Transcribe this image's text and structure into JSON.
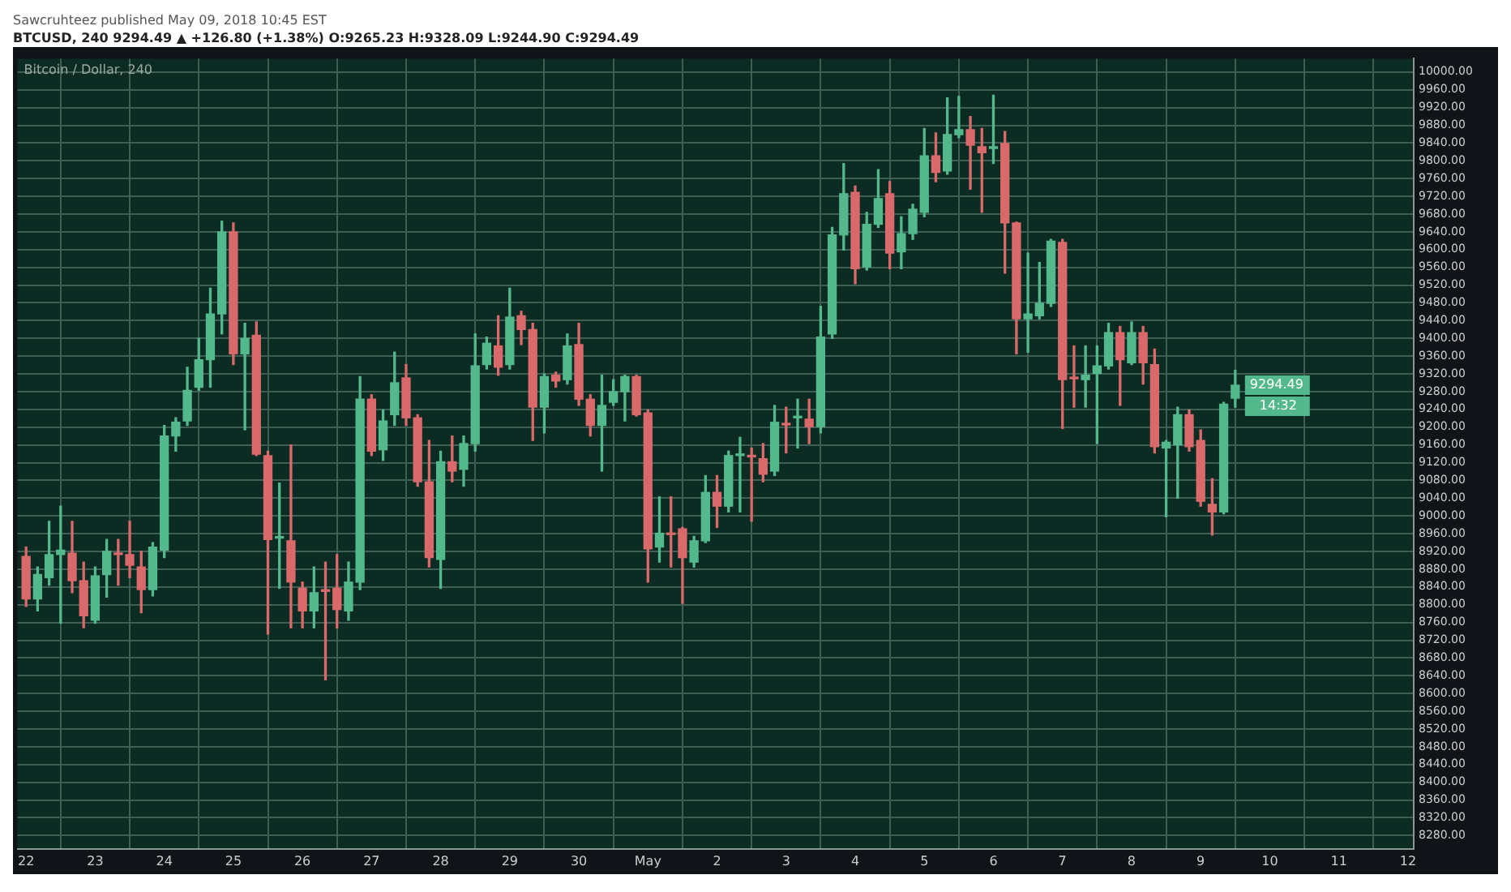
{
  "chart_data": {
    "type": "candlestick",
    "title": "BTCUSD, 240 9294.49 ▲ +126.80 (+1.38%) O:9265.23 H:9328.09 L:9244.90 C:9294.49",
    "subtitle": "Bitcoin / Dollar, 240",
    "annotations": [
      {
        "text": "9294.49",
        "x": "2018-05-09T12:00",
        "y": 9294.49
      },
      "14:32",
      "Sawcruhteez published May 09, 2018 10:45 EST"
    ],
    "x": [
      "2018-04-22T00:00",
      "2018-04-22T04:00",
      "2018-04-22T08:00",
      "2018-04-22T12:00",
      "2018-04-22T16:00",
      "2018-04-22T20:00",
      "2018-04-23T00:00",
      "2018-04-23T04:00",
      "2018-04-23T08:00",
      "2018-04-23T12:00",
      "2018-04-23T16:00",
      "2018-04-23T20:00",
      "2018-04-24T00:00",
      "2018-04-24T04:00",
      "2018-04-24T08:00",
      "2018-04-24T12:00",
      "2018-04-24T16:00",
      "2018-04-24T20:00",
      "2018-04-25T00:00",
      "2018-04-25T04:00",
      "2018-04-25T08:00",
      "2018-04-25T12:00",
      "2018-04-25T16:00",
      "2018-04-25T20:00",
      "2018-04-26T00:00",
      "2018-04-26T04:00",
      "2018-04-26T08:00",
      "2018-04-26T12:00",
      "2018-04-26T16:00",
      "2018-04-26T20:00",
      "2018-04-27T00:00",
      "2018-04-27T04:00",
      "2018-04-27T08:00",
      "2018-04-27T12:00",
      "2018-04-27T16:00",
      "2018-04-27T20:00",
      "2018-04-28T00:00",
      "2018-04-28T04:00",
      "2018-04-28T08:00",
      "2018-04-28T12:00",
      "2018-04-28T16:00",
      "2018-04-28T20:00",
      "2018-04-29T00:00",
      "2018-04-29T04:00",
      "2018-04-29T08:00",
      "2018-04-29T12:00",
      "2018-04-29T16:00",
      "2018-04-29T20:00",
      "2018-04-30T00:00",
      "2018-04-30T04:00",
      "2018-04-30T08:00",
      "2018-04-30T12:00",
      "2018-04-30T16:00",
      "2018-04-30T20:00",
      "2018-05-01T00:00",
      "2018-05-01T04:00",
      "2018-05-01T08:00",
      "2018-05-01T12:00",
      "2018-05-01T16:00",
      "2018-05-01T20:00",
      "2018-05-02T00:00",
      "2018-05-02T04:00",
      "2018-05-02T08:00",
      "2018-05-02T12:00",
      "2018-05-02T16:00",
      "2018-05-02T20:00",
      "2018-05-03T00:00",
      "2018-05-03T04:00",
      "2018-05-03T08:00",
      "2018-05-03T12:00",
      "2018-05-03T16:00",
      "2018-05-03T20:00",
      "2018-05-04T00:00",
      "2018-05-04T04:00",
      "2018-05-04T08:00",
      "2018-05-04T12:00",
      "2018-05-04T16:00",
      "2018-05-04T20:00",
      "2018-05-05T00:00",
      "2018-05-05T04:00",
      "2018-05-05T08:00",
      "2018-05-05T12:00",
      "2018-05-05T16:00",
      "2018-05-05T20:00",
      "2018-05-06T00:00",
      "2018-05-06T04:00",
      "2018-05-06T08:00",
      "2018-05-06T12:00",
      "2018-05-06T16:00",
      "2018-05-06T20:00",
      "2018-05-07T00:00",
      "2018-05-07T04:00",
      "2018-05-07T08:00",
      "2018-05-07T12:00",
      "2018-05-07T16:00",
      "2018-05-07T20:00",
      "2018-05-08T00:00",
      "2018-05-08T04:00",
      "2018-05-08T08:00",
      "2018-05-08T12:00",
      "2018-05-08T16:00",
      "2018-05-08T20:00",
      "2018-05-09T00:00",
      "2018-05-09T04:00",
      "2018-05-09T08:00",
      "2018-05-09T12:00"
    ],
    "ohlc": [
      [
        8909,
        8930,
        8796,
        8813
      ],
      [
        8813,
        8885,
        8786,
        8868
      ],
      [
        8861,
        8988,
        8844,
        8913
      ],
      [
        8913,
        9022,
        8758,
        8923
      ],
      [
        8916,
        8988,
        8827,
        8854
      ],
      [
        8854,
        8896,
        8748,
        8775
      ],
      [
        8765,
        8885,
        8758,
        8865
      ],
      [
        8868,
        8947,
        8817,
        8920
      ],
      [
        8916,
        8947,
        8844,
        8913
      ],
      [
        8913,
        8988,
        8861,
        8889
      ],
      [
        8885,
        8920,
        8782,
        8834
      ],
      [
        8834,
        8940,
        8820,
        8930
      ],
      [
        8923,
        9204,
        8906,
        9180
      ],
      [
        9180,
        9221,
        9146,
        9211
      ],
      [
        9214,
        9335,
        9204,
        9283
      ],
      [
        9290,
        9400,
        9283,
        9352
      ],
      [
        9352,
        9513,
        9290,
        9455
      ],
      [
        9455,
        9664,
        9410,
        9640
      ],
      [
        9640,
        9660,
        9341,
        9365
      ],
      [
        9365,
        9434,
        9194,
        9400
      ],
      [
        9407,
        9437,
        9136,
        9139
      ],
      [
        9136,
        9146,
        8734,
        8947
      ],
      [
        8950,
        9074,
        8837,
        8953
      ],
      [
        8944,
        9160,
        8748,
        8851
      ],
      [
        8837,
        8851,
        8748,
        8786
      ],
      [
        8786,
        8885,
        8748,
        8827
      ],
      [
        8834,
        8896,
        8631,
        8830
      ],
      [
        8837,
        8913,
        8748,
        8789
      ],
      [
        8786,
        8896,
        8765,
        8851
      ],
      [
        8851,
        9314,
        8834,
        9263
      ],
      [
        9263,
        9273,
        9136,
        9146
      ],
      [
        9149,
        9239,
        9125,
        9214
      ],
      [
        9228,
        9369,
        9204,
        9300
      ],
      [
        9311,
        9341,
        9204,
        9221
      ],
      [
        9221,
        9228,
        9067,
        9077
      ],
      [
        9077,
        9170,
        8885,
        8906
      ],
      [
        8902,
        9146,
        8837,
        9122
      ],
      [
        9122,
        9180,
        9077,
        9101
      ],
      [
        9105,
        9180,
        9067,
        9163
      ],
      [
        9163,
        9410,
        9146,
        9338
      ],
      [
        9341,
        9403,
        9331,
        9389
      ],
      [
        9383,
        9451,
        9317,
        9335
      ],
      [
        9341,
        9513,
        9331,
        9448
      ],
      [
        9451,
        9461,
        9386,
        9420
      ],
      [
        9420,
        9434,
        9170,
        9245
      ],
      [
        9245,
        9320,
        9187,
        9314
      ],
      [
        9317,
        9324,
        9290,
        9304
      ],
      [
        9307,
        9410,
        9297,
        9383
      ],
      [
        9386,
        9434,
        9249,
        9263
      ],
      [
        9263,
        9273,
        9180,
        9204
      ],
      [
        9204,
        9317,
        9101,
        9249
      ],
      [
        9256,
        9307,
        9249,
        9280
      ],
      [
        9280,
        9317,
        9214,
        9314
      ],
      [
        9314,
        9317,
        9225,
        9228
      ],
      [
        9232,
        9239,
        8851,
        8926
      ],
      [
        8930,
        9043,
        8896,
        8961
      ],
      [
        8961,
        9043,
        8885,
        8958
      ],
      [
        8971,
        8974,
        8803,
        8906
      ],
      [
        8896,
        8954,
        8885,
        8944
      ],
      [
        8944,
        9091,
        8940,
        9053
      ],
      [
        9053,
        9091,
        8974,
        9022
      ],
      [
        9022,
        9146,
        9009,
        9136
      ],
      [
        9136,
        9177,
        9009,
        9139
      ],
      [
        9136,
        9153,
        8988,
        9133
      ],
      [
        9129,
        9163,
        9077,
        9094
      ],
      [
        9101,
        9249,
        9091,
        9211
      ],
      [
        9208,
        9245,
        9142,
        9205
      ],
      [
        9221,
        9263,
        9153,
        9224
      ],
      [
        9218,
        9263,
        9163,
        9201
      ],
      [
        9201,
        9472,
        9187,
        9403
      ],
      [
        9410,
        9650,
        9400,
        9633
      ],
      [
        9633,
        9794,
        9599,
        9726
      ],
      [
        9729,
        9743,
        9523,
        9557
      ],
      [
        9561,
        9684,
        9554,
        9657
      ],
      [
        9657,
        9780,
        9650,
        9715
      ],
      [
        9726,
        9753,
        9557,
        9592
      ],
      [
        9595,
        9674,
        9557,
        9636
      ],
      [
        9636,
        9702,
        9623,
        9691
      ],
      [
        9684,
        9873,
        9674,
        9811
      ],
      [
        9811,
        9863,
        9753,
        9774
      ],
      [
        9777,
        9942,
        9770,
        9859
      ],
      [
        9859,
        9945,
        9852,
        9870
      ],
      [
        9870,
        9900,
        9736,
        9835
      ],
      [
        9832,
        9873,
        9684,
        9818
      ],
      [
        9828,
        9948,
        9794,
        9830
      ],
      [
        9839,
        9866,
        9547,
        9660
      ],
      [
        9660,
        9662,
        9365,
        9444
      ],
      [
        9444,
        9592,
        9369,
        9455
      ],
      [
        9451,
        9571,
        9444,
        9479
      ],
      [
        9479,
        9623,
        9472,
        9619
      ],
      [
        9616,
        9623,
        9197,
        9307
      ],
      [
        9311,
        9383,
        9245,
        9309
      ],
      [
        9307,
        9383,
        9245,
        9317
      ],
      [
        9321,
        9383,
        9163,
        9338
      ],
      [
        9338,
        9434,
        9331,
        9413
      ],
      [
        9413,
        9427,
        9249,
        9352
      ],
      [
        9345,
        9437,
        9341,
        9413
      ],
      [
        9413,
        9427,
        9297,
        9345
      ],
      [
        9341,
        9376,
        9142,
        9156
      ],
      [
        9153,
        9170,
        8998,
        9166
      ],
      [
        9160,
        9245,
        9040,
        9228
      ],
      [
        9228,
        9239,
        9146,
        9156
      ],
      [
        9170,
        9194,
        9022,
        9033
      ],
      [
        9026,
        9084,
        8957,
        9009
      ],
      [
        9009,
        9256,
        9005,
        9252
      ],
      [
        9265.23,
        9328.09,
        9244.9,
        9294.49
      ]
    ],
    "xlim": [
      "2018-04-21T21:00",
      "2018-05-12T02:00"
    ],
    "xticks": [
      {
        "value": "2018-04-22",
        "label": "22"
      },
      {
        "value": "2018-04-23",
        "label": "23"
      },
      {
        "value": "2018-04-24",
        "label": "24"
      },
      {
        "value": "2018-04-25",
        "label": "25"
      },
      {
        "value": "2018-04-26",
        "label": "26"
      },
      {
        "value": "2018-04-27",
        "label": "27"
      },
      {
        "value": "2018-04-28",
        "label": "28"
      },
      {
        "value": "2018-04-29",
        "label": "29"
      },
      {
        "value": "2018-04-30",
        "label": "30"
      },
      {
        "value": "2018-05-01",
        "label": "May"
      },
      {
        "value": "2018-05-02",
        "label": "2"
      },
      {
        "value": "2018-05-03",
        "label": "3"
      },
      {
        "value": "2018-05-04",
        "label": "4"
      },
      {
        "value": "2018-05-05",
        "label": "5"
      },
      {
        "value": "2018-05-06",
        "label": "6"
      },
      {
        "value": "2018-05-07",
        "label": "7"
      },
      {
        "value": "2018-05-08",
        "label": "8"
      },
      {
        "value": "2018-05-09",
        "label": "9"
      },
      {
        "value": "2018-05-10",
        "label": "10"
      },
      {
        "value": "2018-05-11",
        "label": "11"
      },
      {
        "value": "2018-05-12",
        "label": "12"
      }
    ],
    "ylim": [
      8250,
      10030
    ],
    "yticks": [
      {
        "value": 8280,
        "label": "8280.00"
      },
      {
        "value": 8320,
        "label": "8320.00"
      },
      {
        "value": 8360,
        "label": "8360.00"
      },
      {
        "value": 8400,
        "label": "8400.00"
      },
      {
        "value": 8440,
        "label": "8440.00"
      },
      {
        "value": 8480,
        "label": "8480.00"
      },
      {
        "value": 8520,
        "label": "8520.00"
      },
      {
        "value": 8560,
        "label": "8560.00"
      },
      {
        "value": 8600,
        "label": "8600.00"
      },
      {
        "value": 8640,
        "label": "8640.00"
      },
      {
        "value": 8680,
        "label": "8680.00"
      },
      {
        "value": 8720,
        "label": "8720.00"
      },
      {
        "value": 8760,
        "label": "8760.00"
      },
      {
        "value": 8800,
        "label": "8800.00"
      },
      {
        "value": 8840,
        "label": "8840.00"
      },
      {
        "value": 8880,
        "label": "8880.00"
      },
      {
        "value": 8920,
        "label": "8920.00"
      },
      {
        "value": 8960,
        "label": "8960.00"
      },
      {
        "value": 9000,
        "label": "9000.00"
      },
      {
        "value": 9040,
        "label": "9040.00"
      },
      {
        "value": 9080,
        "label": "9080.00"
      },
      {
        "value": 9120,
        "label": "9120.00"
      },
      {
        "value": 9160,
        "label": "9160.00"
      },
      {
        "value": 9200,
        "label": "9200.00"
      },
      {
        "value": 9240,
        "label": "9240.00"
      },
      {
        "value": 9280,
        "label": "9280.00"
      },
      {
        "value": 9320,
        "label": "9320.00"
      },
      {
        "value": 9360,
        "label": "9360.00"
      },
      {
        "value": 9400,
        "label": "9400.00"
      },
      {
        "value": 9440,
        "label": "9440.00"
      },
      {
        "value": 9480,
        "label": "9480.00"
      },
      {
        "value": 9520,
        "label": "9520.00"
      },
      {
        "value": 9560,
        "label": "9560.00"
      },
      {
        "value": 9600,
        "label": "9600.00"
      },
      {
        "value": 9640,
        "label": "9640.00"
      },
      {
        "value": 9680,
        "label": "9680.00"
      },
      {
        "value": 9720,
        "label": "9720.00"
      },
      {
        "value": 9760,
        "label": "9760.00"
      },
      {
        "value": 9800,
        "label": "9800.00"
      },
      {
        "value": 9840,
        "label": "9840.00"
      },
      {
        "value": 9880,
        "label": "9880.00"
      },
      {
        "value": 9920,
        "label": "9920.00"
      },
      {
        "value": 9960,
        "label": "9960.00"
      },
      {
        "value": 10000,
        "label": "10000.00"
      }
    ],
    "grid": true
  }
}
